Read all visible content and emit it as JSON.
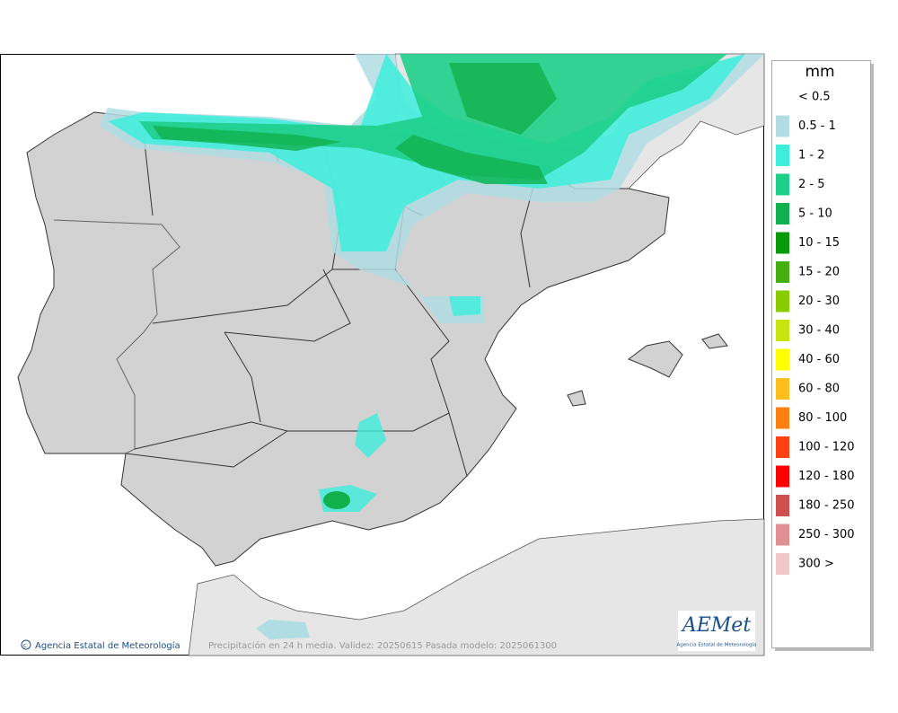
{
  "legend": {
    "title": "mm",
    "items": [
      {
        "label": "< 0.5",
        "color": null
      },
      {
        "label": "0.5 - 1",
        "color": "#b0dde3"
      },
      {
        "label": "1 - 2",
        "color": "#3deedd"
      },
      {
        "label": "2 - 5",
        "color": "#1ecf8a"
      },
      {
        "label": "5 - 10",
        "color": "#10b04c"
      },
      {
        "label": "10 - 15",
        "color": "#089a08"
      },
      {
        "label": "15 - 20",
        "color": "#44b010"
      },
      {
        "label": "20 - 30",
        "color": "#88cc00"
      },
      {
        "label": "30 - 40",
        "color": "#c8e410"
      },
      {
        "label": "40 - 60",
        "color": "#ffff00"
      },
      {
        "label": "60 - 80",
        "color": "#ffbe1e"
      },
      {
        "label": "80 - 100",
        "color": "#ff8010"
      },
      {
        "label": "100 - 120",
        "color": "#ff4010"
      },
      {
        "label": "120 - 180",
        "color": "#ff0000"
      },
      {
        "label": "180 - 250",
        "color": "#d05050"
      },
      {
        "label": "250 - 300",
        "color": "#e09090"
      },
      {
        "label": "300 >",
        "color": "#f0c8c8"
      }
    ]
  },
  "footer": {
    "credit": "Agencia Estatal de Meteorología",
    "caption": "Precipitación en 24 h media. Validez: 20250615 Pasada modelo: 2025061300"
  },
  "logo": {
    "name": "AEMet",
    "subtitle": "Agencia Estatal de Meteorología"
  }
}
